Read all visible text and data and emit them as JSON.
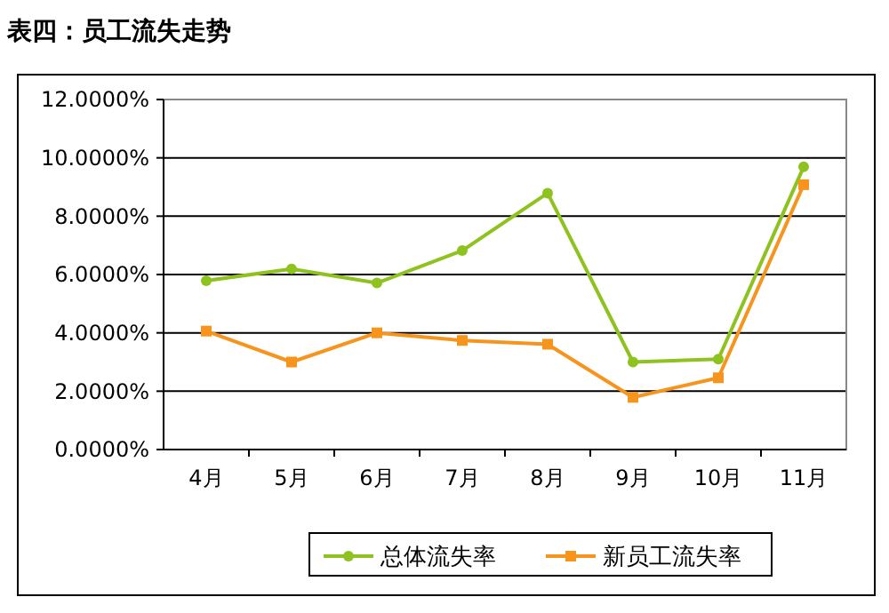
{
  "chart_data": {
    "type": "line",
    "title": "表四：员工流失走势",
    "categories": [
      "4月",
      "5月",
      "6月",
      "7月",
      "8月",
      "9月",
      "10月",
      "11月"
    ],
    "series": [
      {
        "name": "总体流失率",
        "color": "#8dc21f",
        "marker": "circle",
        "values": [
          5.79,
          6.19,
          5.71,
          6.82,
          8.79,
          3.0,
          3.1,
          9.69
        ]
      },
      {
        "name": "新员工流失率",
        "color": "#f7941d",
        "marker": "square",
        "values": [
          4.06,
          3.0,
          4.0,
          3.74,
          3.61,
          1.79,
          2.46,
          9.08
        ]
      }
    ],
    "ylim": [
      0,
      12
    ],
    "yticks": [
      {
        "value": 0,
        "label": "0.0000%"
      },
      {
        "value": 2,
        "label": "2.0000%"
      },
      {
        "value": 4,
        "label": "4.0000%"
      },
      {
        "value": 6,
        "label": "6.0000%"
      },
      {
        "value": 8,
        "label": "8.0000%"
      },
      {
        "value": 10,
        "label": "10.0000%"
      },
      {
        "value": 12,
        "label": "12.0000%"
      }
    ],
    "grid": "y",
    "legend": "bottom",
    "line_style": "solid"
  }
}
